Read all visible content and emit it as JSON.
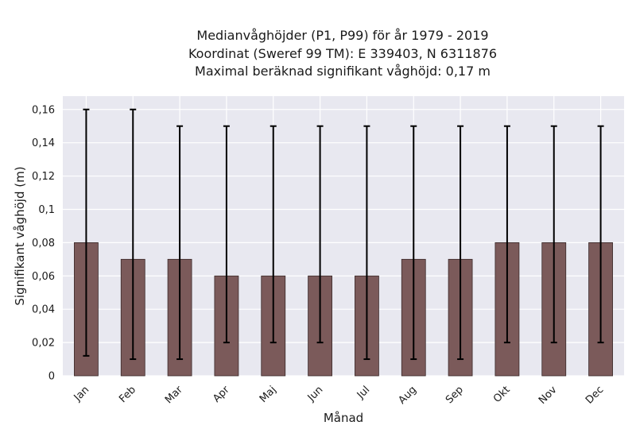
{
  "chart_data": {
    "type": "bar",
    "title_lines": [
      "Medianvåghöjder (P1, P99) för år 1979 - 2019",
      "Koordinat (Sweref 99 TM): E 339403, N 6311876",
      "Maximal beräknad signifikant våghöjd: 0,17 m"
    ],
    "xlabel": "Månad",
    "ylabel": "Signifikant våghöjd (m)",
    "categories": [
      "Jan",
      "Feb",
      "Mar",
      "Apr",
      "Maj",
      "Jun",
      "Jul",
      "Aug",
      "Sep",
      "Okt",
      "Nov",
      "Dec"
    ],
    "values": [
      0.08,
      0.07,
      0.07,
      0.06,
      0.06,
      0.06,
      0.06,
      0.07,
      0.07,
      0.08,
      0.08,
      0.08
    ],
    "p1": [
      0.012,
      0.01,
      0.01,
      0.02,
      0.02,
      0.02,
      0.01,
      0.01,
      0.01,
      0.02,
      0.02,
      0.02
    ],
    "p99": [
      0.16,
      0.16,
      0.15,
      0.15,
      0.15,
      0.15,
      0.15,
      0.15,
      0.15,
      0.15,
      0.15,
      0.15
    ],
    "ylim": [
      0,
      0.168
    ],
    "yticks": [
      0,
      0.02,
      0.04,
      0.06,
      0.08,
      0.1,
      0.12,
      0.14,
      0.16
    ],
    "ytick_labels": [
      "0",
      "0,02",
      "0,04",
      "0,06",
      "0,08",
      "0,1",
      "0,12",
      "0,14",
      "0,16"
    ],
    "grid": true,
    "colors": {
      "bar_fill": "#7b5a5a",
      "bar_edge": "#3a2a2a",
      "plot_bg": "#e8e8f0",
      "grid": "#ffffff",
      "errorbar": "#000000"
    }
  }
}
